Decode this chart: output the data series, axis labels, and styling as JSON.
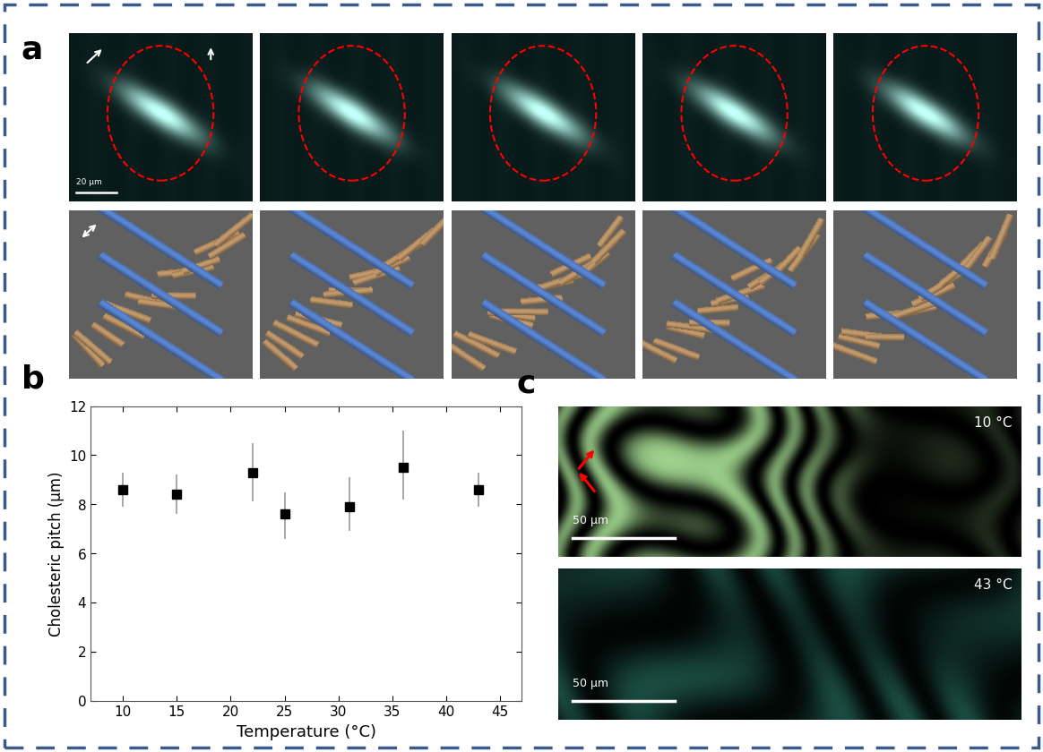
{
  "bg_color": "#ffffff",
  "border_color": "#3a5a8a",
  "panel_label_a": "a",
  "panel_label_b": "b",
  "panel_label_c": "c",
  "plot_b": {
    "x": [
      10,
      15,
      22,
      25,
      31,
      36,
      43
    ],
    "y": [
      8.6,
      8.4,
      9.3,
      7.6,
      7.9,
      9.5,
      8.6
    ],
    "yerr_lo": [
      0.7,
      0.8,
      1.2,
      1.0,
      1.0,
      1.3,
      0.7
    ],
    "yerr_hi": [
      0.7,
      0.8,
      1.2,
      0.9,
      1.2,
      1.5,
      0.7
    ],
    "xlabel": "Temperature (°C)",
    "ylabel": "Cholesteric pitch (μm)",
    "xlim": [
      7,
      47
    ],
    "ylim": [
      0,
      12
    ],
    "xticks": [
      10,
      15,
      20,
      25,
      30,
      35,
      40,
      45
    ],
    "yticks": [
      0,
      2,
      4,
      6,
      8,
      10,
      12
    ],
    "marker_color": "#000000",
    "marker_size": 7,
    "ecolor": "#888888",
    "scale_bar_text": "20 μm",
    "scale_bar_c": "50 μm",
    "temp_top": "10 °C",
    "temp_bot": "43 °C"
  },
  "micro_bg": "#0a1a22",
  "render_bg": "#606060"
}
